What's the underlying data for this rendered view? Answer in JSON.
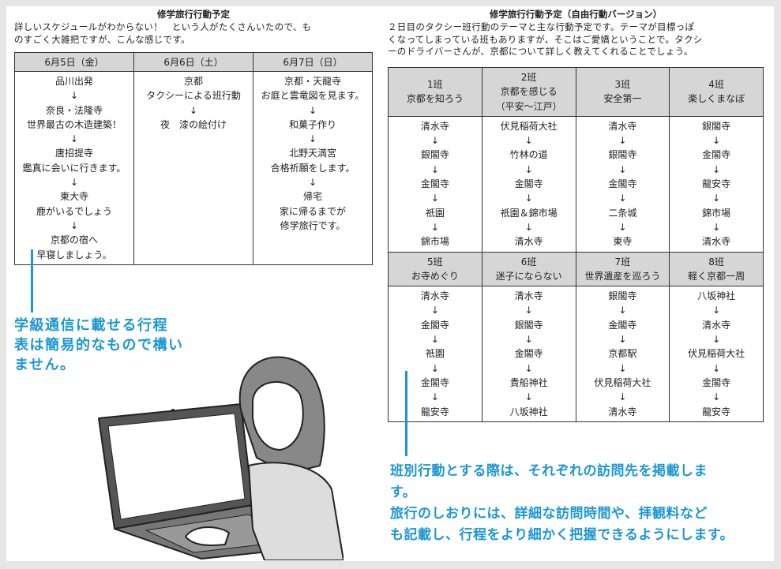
{
  "left": {
    "title": "修学旅行行動予定",
    "intro": [
      "詳しいスケジュールがわからない！　という人がたくさんいたので、も",
      "のすごく大雑把ですが、こんな感じです。"
    ],
    "table": {
      "headers": [
        "6月5日（金）",
        "6月6日（土）",
        "6月7日（日）"
      ],
      "cells": [
        [
          "品川出発",
          "↓",
          "奈良・法隆寺",
          "世界最古の木造建築！",
          "↓",
          "唐招提寺",
          "鑑真に会いに行きます。",
          "↓",
          "東大寺",
          "鹿がいるでしょう",
          "↓",
          "京都の宿へ",
          "早寝しましょう。"
        ],
        [
          "京都",
          "タクシーによる班行動",
          "↓",
          "夜　漆の絵付け"
        ],
        [
          "京都・天龍寺",
          "お庭と雲竜図を見ます。",
          "↓",
          "和菓子作り",
          "↓",
          "北野天満宮",
          "合格祈願をします。",
          "↓",
          "帰宅",
          "家に帰るまでが",
          "修学旅行です。"
        ]
      ]
    }
  },
  "right": {
    "title": "修学旅行行動予定（自由行動バージョン）",
    "intro": [
      "２日目のタクシー班行動のテーマと主な行動予定です。テーマが目標っぽ",
      "くなってしまっている班もありますが、そこはご愛嬌ということで。タクシ",
      "ーのドライバーさんが、京都について詳しく教えてくれることでしょう。"
    ],
    "groups": [
      {
        "header": [
          "1班",
          "京都を知ろう"
        ],
        "route": [
          "清水寺",
          "↓",
          "銀閣寺",
          "↓",
          "金閣寺",
          "↓",
          "祇園",
          "↓",
          "錦市場"
        ]
      },
      {
        "header": [
          "2班",
          "京都を感じる",
          "（平安〜江戸）"
        ],
        "route": [
          "伏見稲荷大社",
          "↓",
          "竹林の道",
          "↓",
          "金閣寺",
          "↓",
          "祇園＆錦市場",
          "↓",
          "清水寺"
        ]
      },
      {
        "header": [
          "3班",
          "安全第一"
        ],
        "route": [
          "清水寺",
          "↓",
          "銀閣寺",
          "↓",
          "金閣寺",
          "↓",
          "二条城",
          "↓",
          "東寺"
        ]
      },
      {
        "header": [
          "4班",
          "楽しくまなぼ"
        ],
        "route": [
          "銀閣寺",
          "↓",
          "金閣寺",
          "↓",
          "龍安寺",
          "↓",
          "錦市場",
          "↓",
          "清水寺"
        ]
      },
      {
        "header": [
          "5班",
          "お寺めぐり"
        ],
        "route": [
          "清水寺",
          "↓",
          "金閣寺",
          "↓",
          "祇園",
          "↓",
          "金閣寺",
          "↓",
          "龍安寺"
        ]
      },
      {
        "header": [
          "6班",
          "迷子にならない"
        ],
        "route": [
          "清水寺",
          "↓",
          "銀閣寺",
          "↓",
          "金閣寺",
          "↓",
          "貴船神社",
          "↓",
          "八坂神社"
        ]
      },
      {
        "header": [
          "7班",
          "世界遺産を巡ろう"
        ],
        "route": [
          "銀閣寺",
          "↓",
          "金閣寺",
          "↓",
          "京都駅",
          "↓",
          "伏見稲荷大社",
          "↓",
          "清水寺"
        ]
      },
      {
        "header": [
          "8班",
          "軽く京都一周"
        ],
        "route": [
          "八坂神社",
          "↓",
          "清水寺",
          "↓",
          "伏見稲荷大社",
          "↓",
          "金閣寺",
          "↓",
          "龍安寺"
        ]
      }
    ]
  },
  "callouts": {
    "left": [
      "学級通信に載せる行程",
      "表は簡易的なもので構い",
      "ません。"
    ],
    "right": [
      "班別行動とする際は、それぞれの訪問先を掲載しま",
      "す。",
      "旅行のしおりには、詳細な訪問時間や、拝観料など",
      "も記載し、行程をより細かく把握できるようにします。"
    ]
  }
}
